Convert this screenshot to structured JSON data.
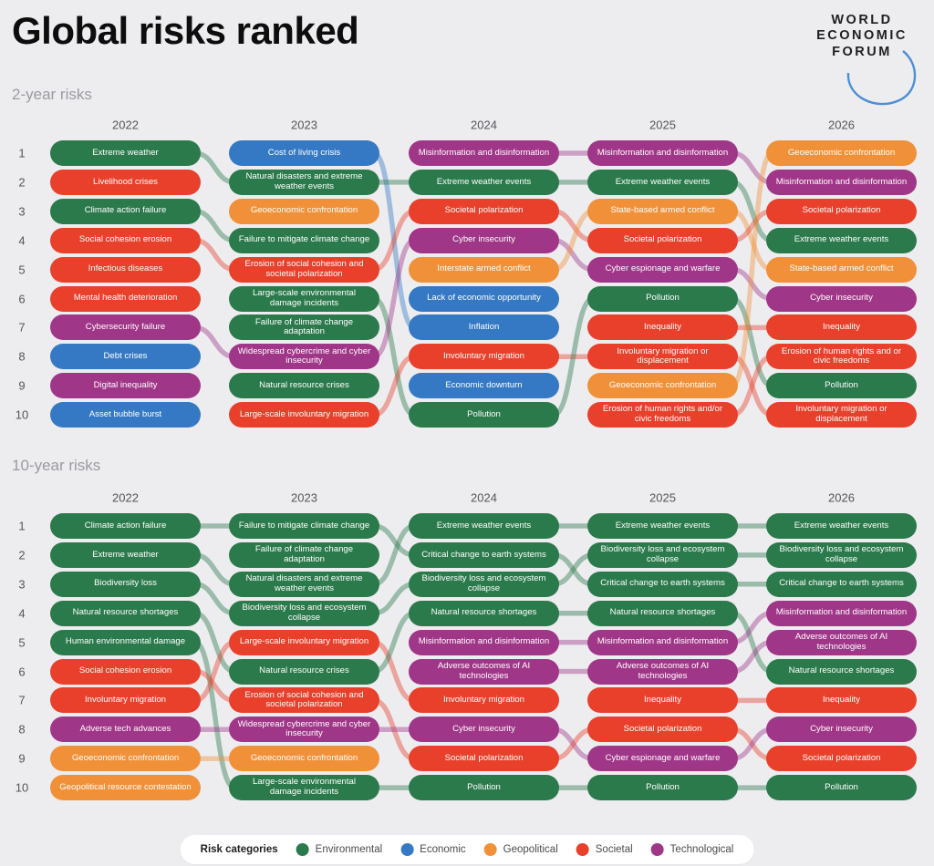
{
  "title": "Global risks ranked",
  "logo": {
    "lines": [
      "WORLD",
      "ECONOMIC",
      "FORUM"
    ]
  },
  "categories": {
    "Environmental": "#2b7a4b",
    "Economic": "#3579c4",
    "Geopolitical": "#f0913a",
    "Societal": "#e8402b",
    "Technological": "#a03687"
  },
  "legend": {
    "label": "Risk categories",
    "items": [
      "Environmental",
      "Economic",
      "Geopolitical",
      "Societal",
      "Technological"
    ]
  },
  "chart_data": [
    {
      "type": "table",
      "title": "2-year risks",
      "columns": [
        "2022",
        "2023",
        "2024",
        "2025",
        "2026"
      ],
      "rows": [
        "1",
        "2",
        "3",
        "4",
        "5",
        "6",
        "7",
        "8",
        "9",
        "10"
      ],
      "cells": [
        [
          {
            "label": "Extreme weather",
            "cat": "Environmental"
          },
          {
            "label": "Livelihood crises",
            "cat": "Societal"
          },
          {
            "label": "Climate action failure",
            "cat": "Environmental"
          },
          {
            "label": "Social cohesion erosion",
            "cat": "Societal"
          },
          {
            "label": "Infectious diseases",
            "cat": "Societal"
          },
          {
            "label": "Mental health deterioration",
            "cat": "Societal"
          },
          {
            "label": "Cybersecurity failure",
            "cat": "Technological"
          },
          {
            "label": "Debt crises",
            "cat": "Economic"
          },
          {
            "label": "Digital inequality",
            "cat": "Technological"
          },
          {
            "label": "Asset bubble burst",
            "cat": "Economic"
          }
        ],
        [
          {
            "label": "Cost of living crisis",
            "cat": "Economic"
          },
          {
            "label": "Natural disasters and extreme weather events",
            "cat": "Environmental"
          },
          {
            "label": "Geoeconomic confrontation",
            "cat": "Geopolitical"
          },
          {
            "label": "Failure to mitigate climate change",
            "cat": "Environmental"
          },
          {
            "label": "Erosion of social cohesion and societal polarization",
            "cat": "Societal"
          },
          {
            "label": "Large-scale environmental damage incidents",
            "cat": "Environmental"
          },
          {
            "label": "Failure of climate change adaptation",
            "cat": "Environmental"
          },
          {
            "label": "Widespread cybercrime and cyber insecurity",
            "cat": "Technological"
          },
          {
            "label": "Natural resource crises",
            "cat": "Environmental"
          },
          {
            "label": "Large-scale involuntary migration",
            "cat": "Societal"
          }
        ],
        [
          {
            "label": "Misinformation and disinformation",
            "cat": "Technological"
          },
          {
            "label": "Extreme weather events",
            "cat": "Environmental"
          },
          {
            "label": "Societal polarization",
            "cat": "Societal"
          },
          {
            "label": "Cyber insecurity",
            "cat": "Technological"
          },
          {
            "label": "Interstate armed conflict",
            "cat": "Geopolitical"
          },
          {
            "label": "Lack of economic opportunity",
            "cat": "Economic"
          },
          {
            "label": "Inflation",
            "cat": "Economic"
          },
          {
            "label": "Involuntary migration",
            "cat": "Societal"
          },
          {
            "label": "Economic downturn",
            "cat": "Economic"
          },
          {
            "label": "Pollution",
            "cat": "Environmental"
          }
        ],
        [
          {
            "label": "Misinformation and disinformation",
            "cat": "Technological"
          },
          {
            "label": "Extreme weather events",
            "cat": "Environmental"
          },
          {
            "label": "State-based armed conflict",
            "cat": "Geopolitical"
          },
          {
            "label": "Societal polarization",
            "cat": "Societal"
          },
          {
            "label": "Cyber espionage and warfare",
            "cat": "Technological"
          },
          {
            "label": "Pollution",
            "cat": "Environmental"
          },
          {
            "label": "Inequality",
            "cat": "Societal"
          },
          {
            "label": "Involuntary migration or displacement",
            "cat": "Societal"
          },
          {
            "label": "Geoeconomic confrontation",
            "cat": "Geopolitical"
          },
          {
            "label": "Erosion of human rights and/or civic freedoms",
            "cat": "Societal"
          }
        ],
        [
          {
            "label": "Geoeconomic confrontation",
            "cat": "Geopolitical"
          },
          {
            "label": "Misinformation and disinformation",
            "cat": "Technological"
          },
          {
            "label": "Societal polarization",
            "cat": "Societal"
          },
          {
            "label": "Extreme weather events",
            "cat": "Environmental"
          },
          {
            "label": "State-based armed conflict",
            "cat": "Geopolitical"
          },
          {
            "label": "Cyber insecurity",
            "cat": "Technological"
          },
          {
            "label": "Inequality",
            "cat": "Societal"
          },
          {
            "label": "Erosion of human rights and or civic freedoms",
            "cat": "Societal"
          },
          {
            "label": "Pollution",
            "cat": "Environmental"
          },
          {
            "label": "Involuntary migration or displacement",
            "cat": "Societal"
          }
        ]
      ],
      "links": [
        [
          [
            1,
            2
          ],
          [
            3,
            4
          ],
          [
            4,
            5
          ],
          [
            7,
            8
          ]
        ],
        [
          [
            1,
            7
          ],
          [
            2,
            2
          ],
          [
            5,
            3
          ],
          [
            6,
            10
          ],
          [
            8,
            4
          ],
          [
            10,
            8
          ]
        ],
        [
          [
            1,
            1
          ],
          [
            2,
            2
          ],
          [
            3,
            4
          ],
          [
            4,
            5
          ],
          [
            5,
            3
          ],
          [
            8,
            8
          ],
          [
            10,
            6
          ]
        ],
        [
          [
            1,
            2
          ],
          [
            2,
            4
          ],
          [
            3,
            5
          ],
          [
            4,
            3
          ],
          [
            5,
            6
          ],
          [
            6,
            9
          ],
          [
            7,
            7
          ],
          [
            8,
            10
          ],
          [
            9,
            1
          ],
          [
            10,
            8
          ]
        ]
      ]
    },
    {
      "type": "table",
      "title": "10-year risks",
      "columns": [
        "2022",
        "2023",
        "2024",
        "2025",
        "2026"
      ],
      "rows": [
        "1",
        "2",
        "3",
        "4",
        "5",
        "6",
        "7",
        "8",
        "9",
        "10"
      ],
      "cells": [
        [
          {
            "label": "Climate action failure",
            "cat": "Environmental"
          },
          {
            "label": "Extreme weather",
            "cat": "Environmental"
          },
          {
            "label": "Biodiversity loss",
            "cat": "Environmental"
          },
          {
            "label": "Natural resource shortages",
            "cat": "Environmental"
          },
          {
            "label": "Human environmental damage",
            "cat": "Environmental"
          },
          {
            "label": "Social cohesion erosion",
            "cat": "Societal"
          },
          {
            "label": "Involuntary migration",
            "cat": "Societal"
          },
          {
            "label": "Adverse tech advances",
            "cat": "Technological"
          },
          {
            "label": "Geoeconomic confrontation",
            "cat": "Geopolitical"
          },
          {
            "label": "Geopolitical resource contestation",
            "cat": "Geopolitical"
          }
        ],
        [
          {
            "label": "Failure to mitigate climate change",
            "cat": "Environmental"
          },
          {
            "label": "Failure of climate change adaptation",
            "cat": "Environmental"
          },
          {
            "label": "Natural disasters and extreme weather events",
            "cat": "Environmental"
          },
          {
            "label": "Biodiversity loss and ecosystem collapse",
            "cat": "Environmental"
          },
          {
            "label": "Large-scale involuntary migration",
            "cat": "Societal"
          },
          {
            "label": "Natural resource crises",
            "cat": "Environmental"
          },
          {
            "label": "Erosion of social cohesion and societal polarization",
            "cat": "Societal"
          },
          {
            "label": "Widespread cybercrime and cyber insecurity",
            "cat": "Technological"
          },
          {
            "label": "Geoeconomic confrontation",
            "cat": "Geopolitical"
          },
          {
            "label": "Large-scale environmental damage incidents",
            "cat": "Environmental"
          }
        ],
        [
          {
            "label": "Extreme weather events",
            "cat": "Environmental"
          },
          {
            "label": "Critical change to earth systems",
            "cat": "Environmental"
          },
          {
            "label": "Biodiversity loss and ecosystem collapse",
            "cat": "Environmental"
          },
          {
            "label": "Natural resource shortages",
            "cat": "Environmental"
          },
          {
            "label": "Misinformation and disinformation",
            "cat": "Technological"
          },
          {
            "label": "Adverse outcomes of AI technologies",
            "cat": "Technological"
          },
          {
            "label": "Involuntary migration",
            "cat": "Societal"
          },
          {
            "label": "Cyber insecurity",
            "cat": "Technological"
          },
          {
            "label": "Societal polarization",
            "cat": "Societal"
          },
          {
            "label": "Pollution",
            "cat": "Environmental"
          }
        ],
        [
          {
            "label": "Extreme weather events",
            "cat": "Environmental"
          },
          {
            "label": "Biodiversity loss and ecosystem collapse",
            "cat": "Environmental"
          },
          {
            "label": "Critical change to earth systems",
            "cat": "Environmental"
          },
          {
            "label": "Natural resource shortages",
            "cat": "Environmental"
          },
          {
            "label": "Misinformation and disinformation",
            "cat": "Technological"
          },
          {
            "label": "Adverse outcomes of AI technologies",
            "cat": "Technological"
          },
          {
            "label": "Inequality",
            "cat": "Societal"
          },
          {
            "label": "Societal polarization",
            "cat": "Societal"
          },
          {
            "label": "Cyber espionage and warfare",
            "cat": "Technological"
          },
          {
            "label": "Pollution",
            "cat": "Environmental"
          }
        ],
        [
          {
            "label": "Extreme weather events",
            "cat": "Environmental"
          },
          {
            "label": "Biodiversity loss and ecosystem collapse",
            "cat": "Environmental"
          },
          {
            "label": "Critical change to earth systems",
            "cat": "Environmental"
          },
          {
            "label": "Misinformation and disinformation",
            "cat": "Technological"
          },
          {
            "label": "Adverse outcomes of AI technologies",
            "cat": "Technological"
          },
          {
            "label": "Natural resource shortages",
            "cat": "Environmental"
          },
          {
            "label": "Inequality",
            "cat": "Societal"
          },
          {
            "label": "Cyber insecurity",
            "cat": "Technological"
          },
          {
            "label": "Societal polarization",
            "cat": "Societal"
          },
          {
            "label": "Pollution",
            "cat": "Environmental"
          }
        ]
      ],
      "links": [
        [
          [
            1,
            1
          ],
          [
            2,
            3
          ],
          [
            3,
            4
          ],
          [
            4,
            6
          ],
          [
            5,
            10
          ],
          [
            6,
            7
          ],
          [
            7,
            5
          ],
          [
            8,
            8
          ],
          [
            9,
            9
          ]
        ],
        [
          [
            1,
            2
          ],
          [
            3,
            1
          ],
          [
            4,
            3
          ],
          [
            5,
            7
          ],
          [
            6,
            4
          ],
          [
            7,
            9
          ],
          [
            8,
            8
          ],
          [
            10,
            10
          ]
        ],
        [
          [
            1,
            1
          ],
          [
            2,
            3
          ],
          [
            3,
            2
          ],
          [
            4,
            4
          ],
          [
            5,
            5
          ],
          [
            6,
            6
          ],
          [
            8,
            9
          ],
          [
            9,
            8
          ],
          [
            10,
            10
          ]
        ],
        [
          [
            1,
            1
          ],
          [
            2,
            2
          ],
          [
            3,
            3
          ],
          [
            4,
            6
          ],
          [
            5,
            4
          ],
          [
            6,
            5
          ],
          [
            7,
            7
          ],
          [
            8,
            9
          ],
          [
            9,
            8
          ],
          [
            10,
            10
          ]
        ]
      ]
    }
  ]
}
